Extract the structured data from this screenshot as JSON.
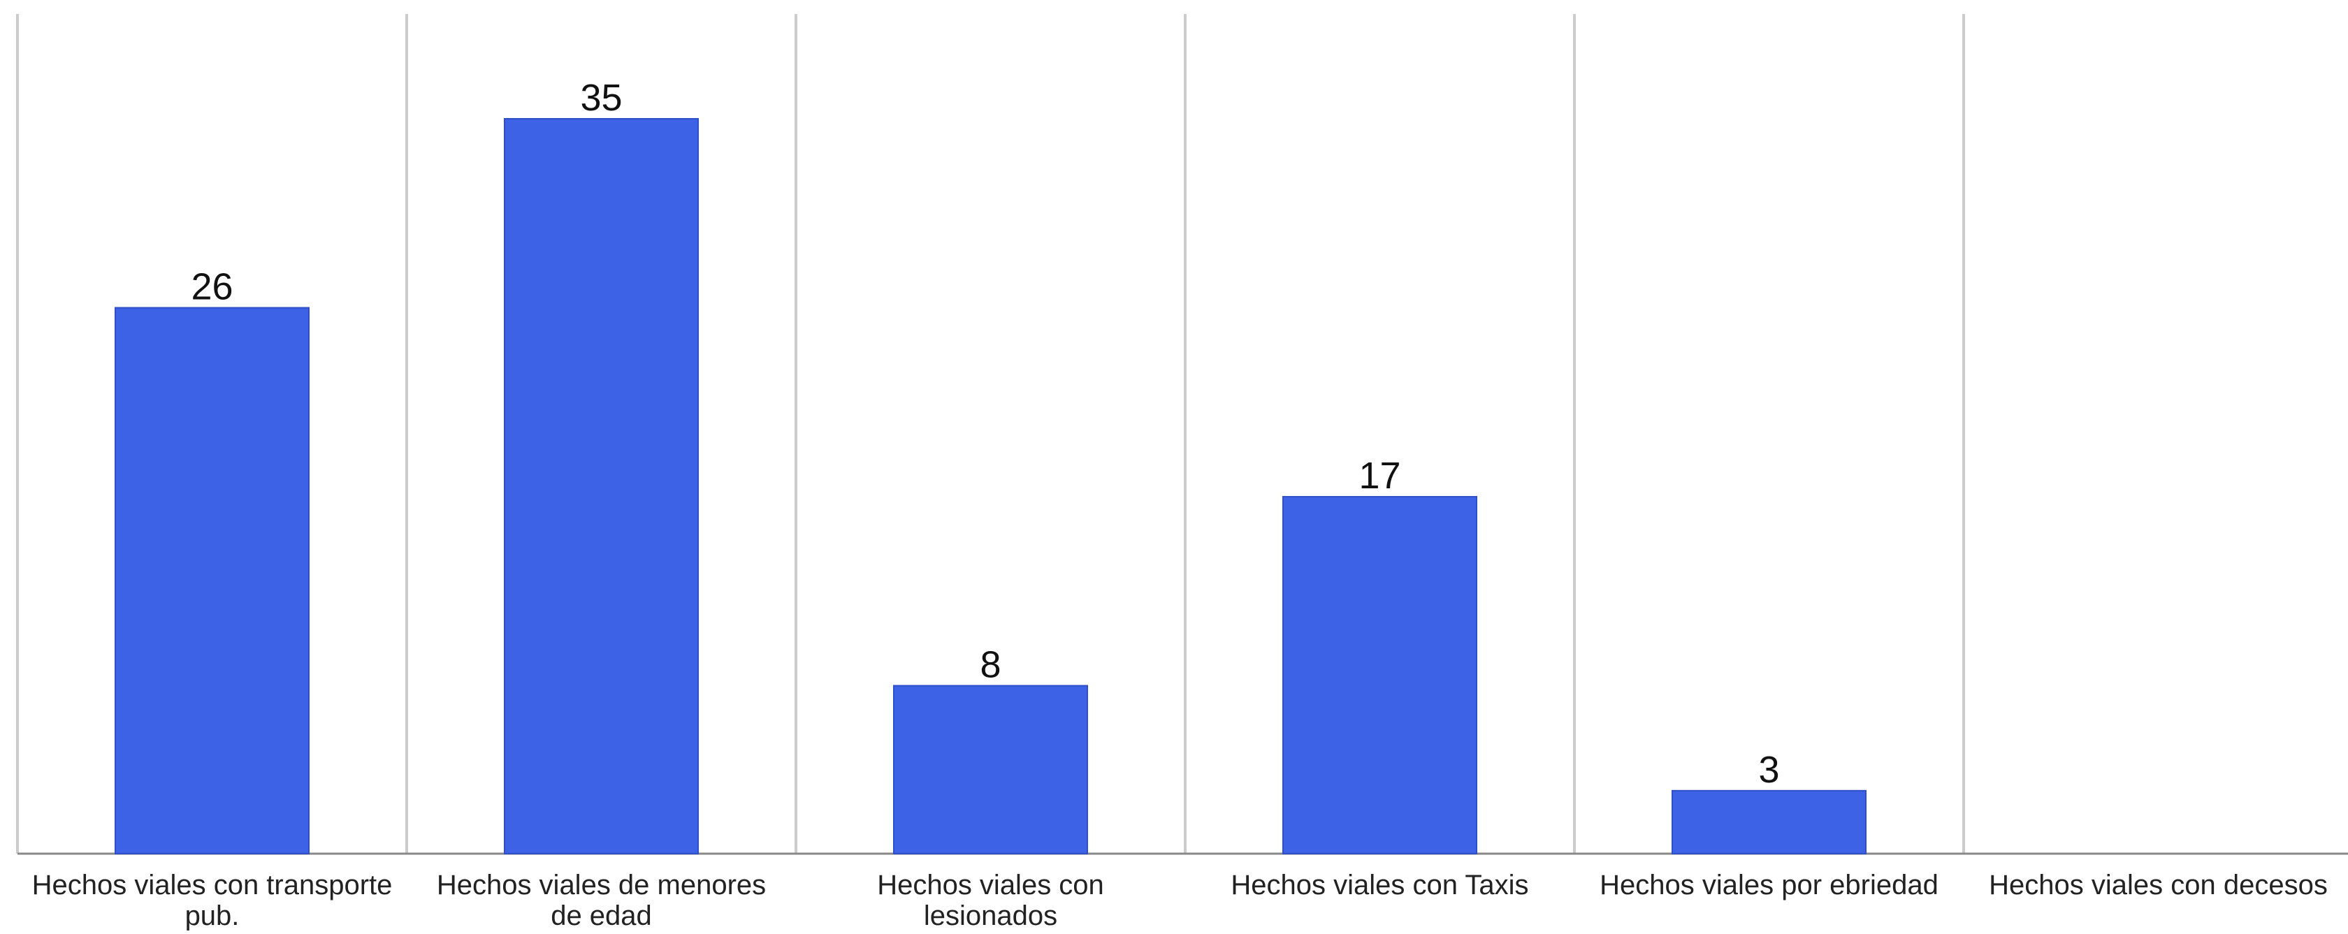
{
  "chart_data": {
    "type": "bar",
    "title": "",
    "xlabel": "",
    "ylabel": "",
    "categories": [
      [
        "Hechos viales con transporte",
        "pub."
      ],
      [
        "Hechos viales de menores",
        "de edad"
      ],
      [
        "Hechos viales con",
        "lesionados"
      ],
      [
        "Hechos viales con Taxis"
      ],
      [
        "Hechos viales por ebriedad"
      ],
      [
        "Hechos viales con decesos"
      ]
    ],
    "values": [
      26,
      35,
      8,
      17,
      3,
      0
    ],
    "data_labels": [
      "26",
      "35",
      "8",
      "17",
      "3",
      ""
    ],
    "ylim": [
      0,
      40
    ],
    "grid": "vertical category separators",
    "legend": "none",
    "colors": {
      "bar": "#3d62e5",
      "grid": "#cccccc",
      "axis": "#888888",
      "label_text": "#222222",
      "value_text": "#111111"
    }
  }
}
